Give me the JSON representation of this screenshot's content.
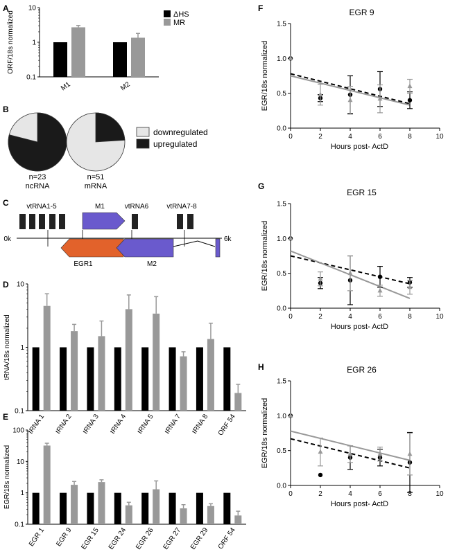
{
  "labels": {
    "A": "A",
    "B": "B",
    "C": "C",
    "D": "D",
    "E": "E",
    "F": "F",
    "G": "G",
    "H": "H"
  },
  "colors": {
    "dhs": "#000000",
    "mr": "#999999",
    "egr1_block": "#e2622b",
    "m_block": "#6a5acd",
    "down": "#e6e6e6",
    "up": "#1a1a1a"
  },
  "panel_b": {
    "pies": [
      {
        "n_label": "n=23",
        "name": "ncRNA",
        "downregulated_fraction": 0.21,
        "upregulated_fraction": 0.79
      },
      {
        "n_label": "n=51",
        "name": "mRNA",
        "downregulated_fraction": 0.76,
        "upregulated_fraction": 0.24
      }
    ],
    "legend": [
      "downregulated",
      "upregulated"
    ]
  },
  "panel_c": {
    "start_label": "0k",
    "end_label": "6k",
    "top_labels": [
      "vtRNA1-5",
      "M1",
      "vtRNA6",
      "vtRNA7-8"
    ],
    "bottom_labels": [
      "EGR1",
      "M2"
    ]
  },
  "chart_data": [
    {
      "panel": "A",
      "type": "bar",
      "ylabel": "ORF/18s normalized",
      "yscale": "log",
      "ylim": [
        0.1,
        10
      ],
      "yticks": [
        "0.1",
        "1",
        "10"
      ],
      "categories": [
        "M1",
        "M2"
      ],
      "legend_position": "top-right",
      "series": [
        {
          "name": "ΔHS",
          "values": [
            1,
            1
          ],
          "err": [
            0,
            0
          ]
        },
        {
          "name": "MR",
          "values": [
            2.7,
            1.35
          ],
          "err": [
            0.35,
            0.45
          ]
        }
      ]
    },
    {
      "panel": "D",
      "type": "bar",
      "ylabel": "tRNA/18s normalized",
      "yscale": "log",
      "ylim": [
        0.1,
        10
      ],
      "yticks": [
        "0.1",
        "1",
        "10"
      ],
      "categories": [
        "tRNA 1",
        "tRNA 2",
        "tRNA 3",
        "tRNA 4",
        "tRNA 5",
        "tRNA 7",
        "tRNA 8",
        "ORF 54"
      ],
      "series": [
        {
          "name": "ΔHS",
          "values": [
            1,
            1,
            1,
            1,
            1,
            1,
            1,
            1
          ]
        },
        {
          "name": "MR",
          "values": [
            4.5,
            1.8,
            1.5,
            4.0,
            3.4,
            0.72,
            1.35,
            0.19
          ],
          "err_hi": [
            7.0,
            2.3,
            2.6,
            6.7,
            6.3,
            0.85,
            2.4,
            0.26
          ],
          "err_lo": [
            4.5,
            1.5,
            1.0,
            1.8,
            1.6,
            0.62,
            0.9,
            0.19
          ]
        }
      ]
    },
    {
      "panel": "E",
      "type": "bar",
      "ylabel": "EGR/18s normalized",
      "yscale": "log",
      "ylim": [
        0.1,
        100
      ],
      "yticks": [
        "0.1",
        "1",
        "10",
        "100"
      ],
      "categories": [
        "EGR 1",
        "EGR 9",
        "EGR 15",
        "EGR 24",
        "EGR 26",
        "EGR 27",
        "EGR 29",
        "ORF 54"
      ],
      "series": [
        {
          "name": "ΔHS",
          "values": [
            1,
            1,
            1,
            1,
            1,
            1,
            1,
            1
          ]
        },
        {
          "name": "MR",
          "values": [
            32,
            1.8,
            2.2,
            0.4,
            1.3,
            0.32,
            0.38,
            0.19
          ],
          "err_hi": [
            38,
            2.3,
            2.6,
            0.5,
            2.4,
            0.42,
            0.45,
            0.26
          ],
          "err_lo": [
            32,
            1.5,
            2.0,
            0.33,
            1.0,
            0.25,
            0.33,
            0.19
          ]
        }
      ]
    },
    {
      "panel": "F",
      "type": "scatter",
      "title": "EGR 9",
      "xlabel": "Hours post- ActD",
      "ylabel": "EGR/18s normalized",
      "xlim": [
        0,
        10
      ],
      "ylim": [
        0,
        1.5
      ],
      "xticks": [
        "0",
        "2",
        "4",
        "6",
        "8",
        "10"
      ],
      "yticks": [
        "0.0",
        "0.5",
        "1.0",
        "1.5"
      ],
      "series": [
        {
          "name": "black",
          "x": [
            0,
            2,
            4,
            6,
            8
          ],
          "y": [
            1.0,
            0.43,
            0.48,
            0.56,
            0.4
          ],
          "err": [
            0,
            0.05,
            0.27,
            0.25,
            0.12
          ],
          "fit": [
            0.78,
            0.35
          ]
        },
        {
          "name": "grey",
          "x": [
            0,
            2,
            4,
            6,
            8
          ],
          "y": [
            1.0,
            0.48,
            0.4,
            0.42,
            0.6
          ],
          "err": [
            0,
            0.15,
            0.2,
            0.2,
            0.1
          ],
          "fit": [
            0.75,
            0.33
          ]
        }
      ]
    },
    {
      "panel": "G",
      "type": "scatter",
      "title": "EGR 15",
      "xlabel": "Hours post- ActD",
      "ylabel": "EGR/18s normalized",
      "xlim": [
        0,
        10
      ],
      "ylim": [
        0,
        1.5
      ],
      "xticks": [
        "0",
        "2",
        "4",
        "6",
        "8",
        "10"
      ],
      "yticks": [
        "0.0",
        "0.5",
        "1.0",
        "1.5"
      ],
      "series": [
        {
          "name": "black",
          "x": [
            0,
            2,
            4,
            6,
            8
          ],
          "y": [
            1.0,
            0.36,
            0.4,
            0.45,
            0.37
          ],
          "err": [
            0,
            0.08,
            0.35,
            0.15,
            0.07
          ],
          "fit": [
            0.75,
            0.35
          ]
        },
        {
          "name": "grey",
          "x": [
            0,
            2,
            4,
            6,
            8
          ],
          "y": [
            1.0,
            0.42,
            0.5,
            0.25,
            0.3
          ],
          "err": [
            0,
            0.1,
            0.25,
            0.08,
            0.1
          ],
          "fit": [
            0.82,
            0.14
          ]
        }
      ]
    },
    {
      "panel": "H",
      "type": "scatter",
      "title": "EGR 26",
      "xlabel": "Hours post- ActD",
      "ylabel": "EGR/18s normalized",
      "xlim": [
        0,
        10
      ],
      "ylim": [
        0,
        1.5
      ],
      "xticks": [
        "0",
        "2",
        "4",
        "6",
        "8",
        "10"
      ],
      "yticks": [
        "0.0",
        "0.5",
        "1.0",
        "1.5"
      ],
      "series": [
        {
          "name": "black",
          "x": [
            0,
            2,
            4,
            6,
            8
          ],
          "y": [
            1.0,
            0.15,
            0.4,
            0.4,
            0.33
          ],
          "err": [
            0,
            0,
            0.17,
            0.12,
            0.43
          ],
          "fit": [
            0.67,
            0.25
          ]
        },
        {
          "name": "grey",
          "x": [
            0,
            2,
            4,
            6,
            8
          ],
          "y": [
            1.0,
            0.48,
            0.45,
            0.45,
            0.45
          ],
          "err": [
            0,
            0.2,
            0.12,
            0.1,
            0.3
          ],
          "fit": [
            0.78,
            0.36
          ]
        }
      ]
    }
  ]
}
